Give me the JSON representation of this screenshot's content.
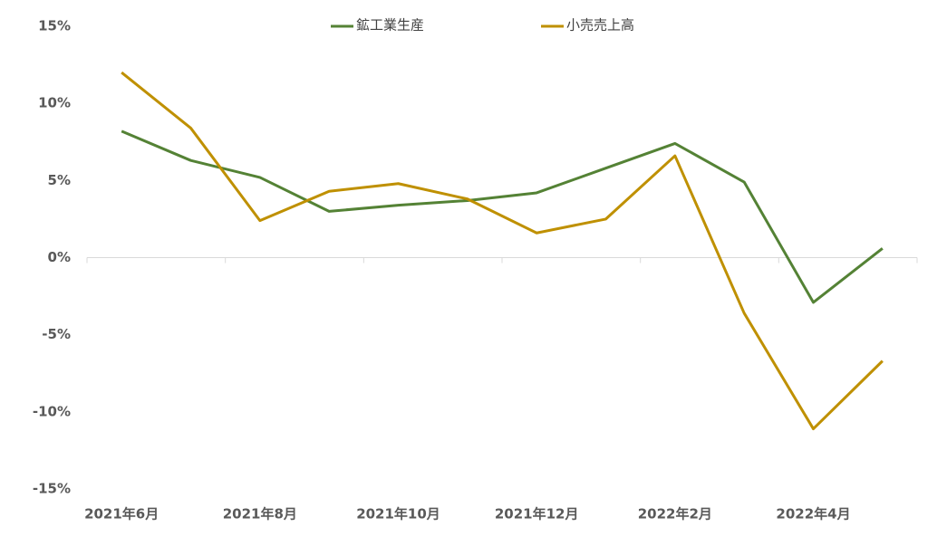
{
  "chart_data": {
    "type": "line",
    "categories": [
      "2021年6月",
      null,
      "2021年8月",
      null,
      "2021年10月",
      null,
      "2021年12月",
      null,
      "2022年2月",
      null,
      "2022年4月",
      null
    ],
    "series": [
      {
        "name": "鉱工業生産",
        "color": "#548235",
        "values": [
          8.2,
          6.3,
          5.2,
          3.0,
          3.4,
          3.7,
          4.2,
          5.8,
          7.4,
          4.9,
          -2.9,
          0.6
        ]
      },
      {
        "name": "小売売上高",
        "color": "#bf9000",
        "values": [
          12.0,
          8.4,
          2.4,
          4.3,
          4.8,
          3.8,
          1.6,
          2.5,
          6.6,
          -3.6,
          -11.1,
          -6.7
        ]
      }
    ],
    "ylim": [
      -15,
      15
    ],
    "yticks": [
      {
        "value": -15,
        "label": "-15%"
      },
      {
        "value": -10,
        "label": "-10%"
      },
      {
        "value": -5,
        "label": "-5%"
      },
      {
        "value": 0,
        "label": "0%"
      },
      {
        "value": 5,
        "label": "5%"
      },
      {
        "value": 10,
        "label": "10%"
      },
      {
        "value": 15,
        "label": "15%"
      }
    ]
  }
}
